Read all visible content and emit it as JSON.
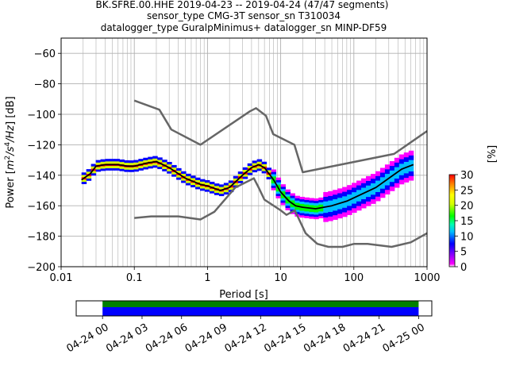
{
  "title_lines": [
    "BK.SFRE.00.HHE   2019-04-23 -- 2019-04-24  (47/47 segments)",
    "sensor_type CMG-3T sensor_sn T310034",
    "datalogger_type GuralpMinimus+ datalogger_sn MINP-DF59"
  ],
  "chart_data": [
    {
      "type": "heatmap",
      "xlabel": "Period [s]",
      "ylabel": "Power [m²/s⁴/Hz] [dB]",
      "ylabel_parts": {
        "a": "Power [",
        "b": "m",
        "c": "2",
        "d": "/s",
        "e": "4",
        "f": "/Hz",
        "g": "] [dB]"
      },
      "xscale": "log",
      "xlim": [
        0.01,
        1000
      ],
      "ylim": [
        -200,
        -50
      ],
      "x_ticks": [
        0.01,
        0.1,
        1,
        10,
        100,
        1000
      ],
      "x_tick_labels": [
        "0.01",
        "0.1",
        "1",
        "10",
        "100",
        "1000"
      ],
      "y_ticks": [
        -200,
        -180,
        -160,
        -140,
        -120,
        -100,
        -80,
        -60
      ],
      "y_tick_labels": [
        "−200",
        "−180",
        "−160",
        "−140",
        "−120",
        "−100",
        "−80",
        "−60"
      ],
      "grid": true,
      "colorbar": {
        "label": "[%]",
        "range": [
          0,
          30
        ],
        "ticks": [
          0,
          5,
          10,
          15,
          20,
          25,
          30
        ],
        "tick_labels": [
          "0",
          "5",
          "10",
          "15",
          "20",
          "25",
          "30"
        ],
        "colormap": [
          "#ffffff",
          "#ff00ff",
          "#0000ff",
          "#00bfff",
          "#00ffb0",
          "#00ff00",
          "#d4ff00",
          "#ffff00",
          "#ff8000",
          "#ff0000"
        ]
      },
      "mean_curve": {
        "color": "#000000",
        "x": [
          0.019,
          0.025,
          0.03,
          0.04,
          0.06,
          0.08,
          0.1,
          0.15,
          0.2,
          0.3,
          0.5,
          0.8,
          1.0,
          1.5,
          2.0,
          3.0,
          4.0,
          5.0,
          6.0,
          8.0,
          10.0,
          13.0,
          16.0,
          20.0,
          30.0,
          50.0,
          80.0,
          120.0,
          200.0,
          300.0,
          450.0,
          650.0
        ],
        "y": [
          -143,
          -139,
          -134,
          -133,
          -133,
          -134,
          -134,
          -132,
          -131,
          -135,
          -142,
          -146,
          -147,
          -150,
          -148,
          -140,
          -135,
          -133,
          -135,
          -143,
          -151,
          -157,
          -160,
          -161,
          -162,
          -160,
          -157,
          -153,
          -148,
          -142,
          -136,
          -133
        ]
      },
      "nlnm": {
        "color": "#666666",
        "x": [
          0.1,
          0.17,
          0.4,
          0.8,
          1.24,
          2.4,
          4.3,
          5.0,
          6.0,
          10.0,
          12.0,
          15.6,
          21.9,
          31.6,
          45.0,
          70.0,
          101.0,
          154.0,
          328.0,
          600.0,
          1000.0
        ],
        "y": [
          -168,
          -167,
          -167,
          -169,
          -164,
          -148,
          -142,
          -148,
          -156,
          -163,
          -166,
          -163,
          -178,
          -185,
          -187,
          -187,
          -185,
          -185,
          -187,
          -184,
          -178
        ]
      },
      "nhnm": {
        "color": "#666666",
        "x": [
          0.1,
          0.22,
          0.32,
          0.8,
          3.8,
          4.6,
          6.3,
          7.9,
          15.4,
          20.0,
          354.8,
          1000.0
        ],
        "y": [
          -91,
          -97,
          -110,
          -120,
          -98,
          -96,
          -101,
          -113,
          -120,
          -138,
          -126,
          -111
        ]
      }
    },
    {
      "type": "timeline",
      "xlim": [
        "2019-04-23 22:00",
        "2019-04-25 01:00"
      ],
      "x_tick_labels": [
        "04-24 00",
        "04-24 03",
        "04-24 06",
        "04-24 09",
        "04-24 12",
        "04-24 15",
        "04-24 18",
        "04-24 21",
        "04-25 00"
      ],
      "coverage": {
        "start": "2019-04-24 00:00",
        "end": "2019-04-25 00:00",
        "color": "#0000ff"
      },
      "processed": {
        "start": "2019-04-24 00:00",
        "end": "2019-04-25 00:00",
        "color": "#008000"
      }
    }
  ]
}
